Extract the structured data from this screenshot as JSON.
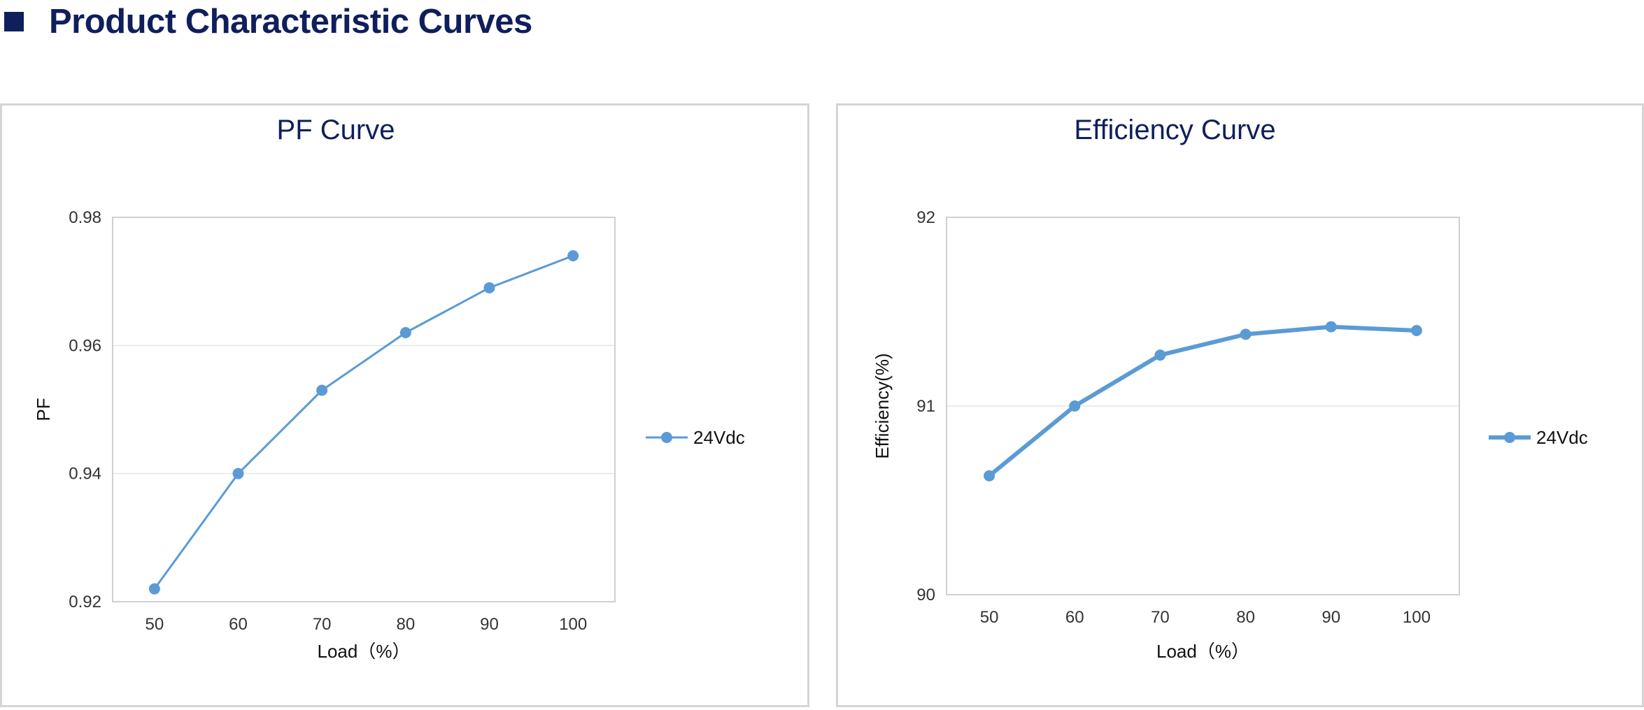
{
  "page": {
    "heading": "Product Characteristic Curves",
    "heading_icon": "square-bullet-icon",
    "colors": {
      "heading": "#0f1f5c",
      "series": "#5b9bd5",
      "grid": "#e6e6e6",
      "border": "#d5d5d5"
    }
  },
  "chart_data": [
    {
      "type": "line",
      "title": "PF Curve",
      "xlabel": "Load（%）",
      "ylabel": "PF",
      "categories": [
        "50",
        "60",
        "70",
        "80",
        "90",
        "100"
      ],
      "yticks": [
        "0.92",
        "0.94",
        "0.96",
        "0.98"
      ],
      "ylim": [
        0.92,
        0.98
      ],
      "grid": true,
      "legend_position": "right",
      "series": [
        {
          "name": "24Vdc",
          "values": [
            0.922,
            0.94,
            0.953,
            0.962,
            0.969,
            0.974
          ]
        }
      ]
    },
    {
      "type": "line",
      "title": "Efficiency Curve",
      "xlabel": "Load（%）",
      "ylabel": "Efficiency(%)",
      "categories": [
        "50",
        "60",
        "70",
        "80",
        "90",
        "100"
      ],
      "yticks": [
        "90",
        "91",
        "92"
      ],
      "ylim": [
        90,
        92
      ],
      "grid": true,
      "legend_position": "right",
      "series": [
        {
          "name": "24Vdc",
          "values": [
            90.63,
            91.0,
            91.27,
            91.38,
            91.42,
            91.4
          ]
        }
      ]
    }
  ]
}
